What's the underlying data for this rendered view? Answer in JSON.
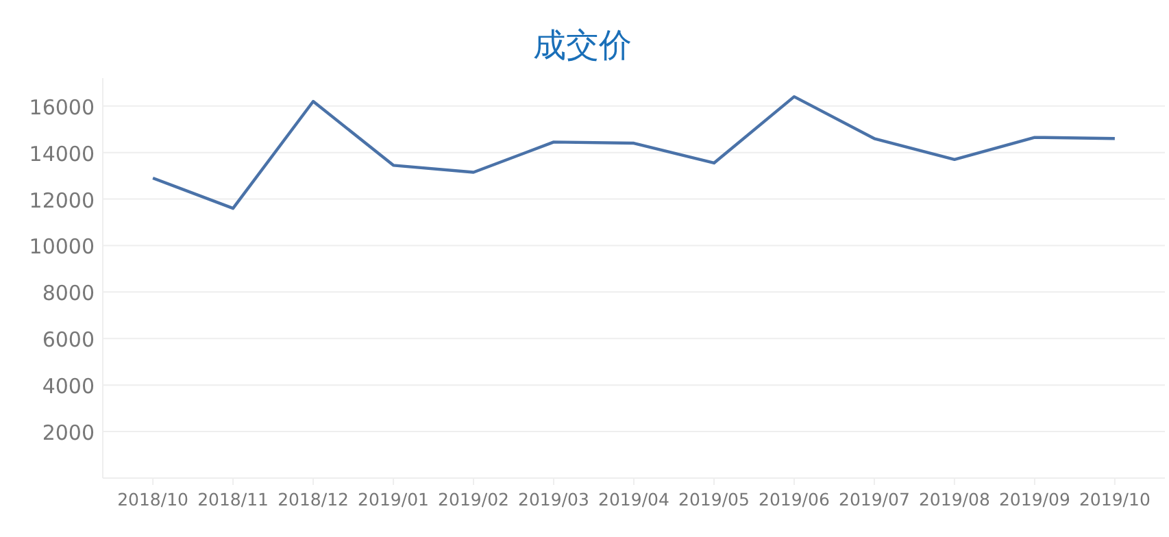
{
  "chart_data": {
    "type": "line",
    "title": "成交价",
    "categories": [
      "2018/10",
      "2018/11",
      "2018/12",
      "2019/01",
      "2019/02",
      "2019/03",
      "2019/04",
      "2019/05",
      "2019/06",
      "2019/07",
      "2019/08",
      "2019/09",
      "2019/10"
    ],
    "series": [
      {
        "color": "#4a72a8",
        "values": [
          12900,
          11600,
          16200,
          13450,
          13150,
          14450,
          14400,
          13550,
          16400,
          14600,
          13700,
          14650,
          14600
        ]
      }
    ],
    "ylim": [
      0,
      17200
    ],
    "yticks": [
      2000,
      4000,
      6000,
      8000,
      10000,
      12000,
      14000,
      16000
    ],
    "grid": "y",
    "marker": "none",
    "line_style": "solid"
  }
}
